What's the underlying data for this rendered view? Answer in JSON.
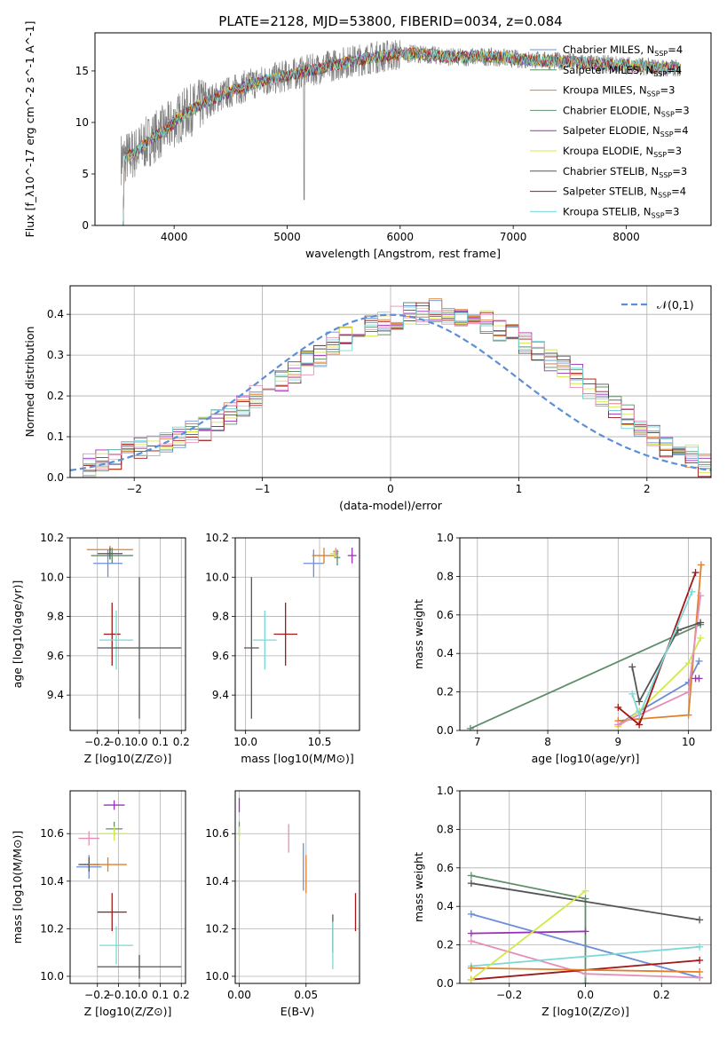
{
  "figure_title": "PLATE=2128, MJD=53800, FIBERID=0034, z=0.084",
  "colors": {
    "chabrier_miles": "#6a8fd8",
    "salpeter_miles": "#5f8f6a",
    "kroupa_miles": "#e07f2a",
    "chabrier_elodie": "#5f8f6a",
    "salpeter_elodie": "#9b30b8",
    "kroupa_elodie": "#d4e84a",
    "chabrier_stelib": "#555555",
    "salpeter_stelib": "#a01818",
    "kroupa_stelib": "#7ad8d8",
    "pink": "#e58fb8",
    "normal_curve": "#5b8fd6",
    "grid": "#b0b0b0",
    "spectrum_data": "#808080"
  },
  "chart_data": [
    {
      "id": "spectrum",
      "type": "line",
      "xlabel": "wavelength [Angstrom, rest frame]",
      "ylabel": "Flux [f_λ10^-17 erg cm^-2 s^-1 A^-1]",
      "xlim": [
        3300,
        8750
      ],
      "ylim": [
        0,
        18.7
      ],
      "xticks": [
        4000,
        5000,
        6000,
        7000,
        8000
      ],
      "yticks": [
        0,
        5,
        10,
        15
      ],
      "grid": false,
      "legend_position": "top-right",
      "legend": [
        "Chabrier MILES, N_SSP=4",
        "Salpeter MILES, N_SSP=4",
        "Kroupa MILES, N_SSP=3",
        "Chabrier ELODIE, N_SSP=3",
        "Salpeter ELODIE, N_SSP=4",
        "Kroupa ELODIE, N_SSP=3",
        "Chabrier STELIB, N_SSP=3",
        "Salpeter STELIB, N_SSP=4",
        "Kroupa STELIB, N_SSP=3"
      ],
      "legend_colors": [
        "#6a8fd8",
        "#5f8f6a",
        "#e07f2a",
        "#5f8f6a",
        "#9b30b8",
        "#d4e84a",
        "#555555",
        "#a01818",
        "#7ad8d8"
      ],
      "continuum": {
        "x": [
          3550,
          3650,
          3750,
          3850,
          3950,
          4050,
          4150,
          4250,
          4350,
          4500,
          4700,
          4900,
          5100,
          5300,
          5500,
          5700,
          5900,
          6100,
          6300,
          6500,
          6700,
          6900,
          7100,
          7300,
          7500,
          7700,
          7900,
          8100,
          8300,
          8500
        ],
        "y": [
          6.5,
          7.0,
          8.0,
          8.8,
          9.5,
          10.5,
          11.2,
          11.8,
          12.3,
          13.0,
          13.8,
          14.3,
          14.8,
          15.3,
          15.8,
          16.2,
          16.5,
          16.7,
          16.5,
          16.3,
          16.4,
          16.3,
          16.1,
          16.0,
          15.9,
          15.7,
          15.6,
          15.5,
          15.3,
          15.2
        ]
      }
    },
    {
      "id": "residuals",
      "type": "bar",
      "xlabel": "(data-model)/error",
      "ylabel": "Normed distribution",
      "xlim": [
        -2.5,
        2.5
      ],
      "ylim": [
        0,
        0.47
      ],
      "xticks": [
        -2,
        -1,
        0,
        1,
        2
      ],
      "yticks": [
        0.0,
        0.1,
        0.2,
        0.3,
        0.4
      ],
      "grid": true,
      "legend": [
        "𝒩(0,1)"
      ],
      "legend_position": "top-right",
      "bin_width": 0.1,
      "bin_start": -2.5,
      "values": [
        0.02,
        0.03,
        0.04,
        0.05,
        0.06,
        0.07,
        0.08,
        0.09,
        0.1,
        0.11,
        0.12,
        0.14,
        0.16,
        0.18,
        0.2,
        0.22,
        0.24,
        0.26,
        0.28,
        0.3,
        0.33,
        0.34,
        0.36,
        0.37,
        0.38,
        0.39,
        0.4,
        0.4,
        0.41,
        0.4,
        0.4,
        0.39,
        0.38,
        0.36,
        0.35,
        0.33,
        0.31,
        0.29,
        0.27,
        0.25,
        0.22,
        0.2,
        0.17,
        0.15,
        0.12,
        0.1,
        0.08,
        0.06,
        0.05,
        0.03
      ]
    },
    {
      "id": "age_vs_Z",
      "type": "scatter",
      "xlabel": "Z [log10(Z/Z⊙)]",
      "ylabel": "age [log10(age/yr)]",
      "xlim": [
        -0.33,
        0.22
      ],
      "ylim": [
        9.22,
        10.2
      ],
      "xticks": [
        -0.2,
        -0.1,
        0.0,
        0.1,
        0.2
      ],
      "yticks": [
        9.4,
        9.6,
        9.8,
        10.0,
        10.2
      ],
      "grid": true,
      "points": [
        {
          "x": -0.15,
          "y": 10.07,
          "xerr": 0.07,
          "yerr": 0.07,
          "color": "#6a8fd8"
        },
        {
          "x": -0.14,
          "y": 10.14,
          "xerr": 0.11,
          "yerr": 0.02,
          "color": "#e07f2a"
        },
        {
          "x": -0.13,
          "y": 10.11,
          "xerr": 0.1,
          "yerr": 0.04,
          "color": "#5f8f6a"
        },
        {
          "x": -0.14,
          "y": 10.12,
          "xerr": 0.06,
          "yerr": 0.03,
          "color": "#555555"
        },
        {
          "x": -0.13,
          "y": 9.71,
          "xerr": 0.04,
          "yerr": 0.16,
          "color": "#a01818"
        },
        {
          "x": -0.11,
          "y": 9.68,
          "xerr": 0.08,
          "yerr": 0.15,
          "color": "#7ad8d8"
        },
        {
          "x": 0.0,
          "y": 9.64,
          "xerr": 0.2,
          "yerr": 0.36,
          "color": "#555555"
        }
      ]
    },
    {
      "id": "age_vs_mass",
      "type": "scatter",
      "xlabel": "mass [log10(M/M⊙)]",
      "ylabel": "",
      "xlim": [
        9.93,
        10.77
      ],
      "ylim": [
        9.22,
        10.2
      ],
      "xticks": [
        10.0,
        10.5
      ],
      "yticks": [
        9.4,
        9.6,
        9.8,
        10.0,
        10.2
      ],
      "grid": true,
      "points": [
        {
          "x": 10.04,
          "y": 9.64,
          "xerr": 0.05,
          "yerr": 0.36,
          "color": "#555555"
        },
        {
          "x": 10.13,
          "y": 9.68,
          "xerr": 0.08,
          "yerr": 0.15,
          "color": "#7ad8d8"
        },
        {
          "x": 10.27,
          "y": 9.71,
          "xerr": 0.08,
          "yerr": 0.16,
          "color": "#a01818"
        },
        {
          "x": 10.46,
          "y": 10.07,
          "xerr": 0.07,
          "yerr": 0.07,
          "color": "#6a8fd8"
        },
        {
          "x": 10.53,
          "y": 10.11,
          "xerr": 0.08,
          "yerr": 0.04,
          "color": "#e07f2a"
        },
        {
          "x": 10.6,
          "y": 10.12,
          "xerr": 0.03,
          "yerr": 0.02,
          "color": "#d4e84a"
        },
        {
          "x": 10.61,
          "y": 10.13,
          "xerr": 0.02,
          "yerr": 0.02,
          "color": "#e58fb8"
        },
        {
          "x": 10.62,
          "y": 10.1,
          "xerr": 0.02,
          "yerr": 0.04,
          "color": "#5f8f6a"
        },
        {
          "x": 10.72,
          "y": 10.11,
          "xerr": 0.03,
          "yerr": 0.04,
          "color": "#9b30b8"
        }
      ]
    },
    {
      "id": "weight_vs_age",
      "type": "line",
      "xlabel": "age [log10(age/yr)]",
      "ylabel": "mass weight",
      "xlim": [
        6.75,
        10.32
      ],
      "ylim": [
        0,
        1.0
      ],
      "xticks": [
        7,
        8,
        9,
        10
      ],
      "yticks": [
        0.0,
        0.2,
        0.4,
        0.6,
        0.8,
        1.0
      ],
      "grid": true,
      "series": [
        {
          "color": "#5f8f6a",
          "x": [
            6.9,
            10.17
          ],
          "y": [
            0.01,
            0.55
          ]
        },
        {
          "color": "#6a8fd8",
          "x": [
            9.0,
            9.3,
            10.0,
            10.15
          ],
          "y": [
            0.03,
            0.1,
            0.25,
            0.36
          ]
        },
        {
          "color": "#e07f2a",
          "x": [
            9.0,
            9.3,
            10.0,
            10.18
          ],
          "y": [
            0.05,
            0.06,
            0.08,
            0.86
          ]
        },
        {
          "color": "#d4e84a",
          "x": [
            9.0,
            9.3,
            10.0,
            10.17
          ],
          "y": [
            0.02,
            0.1,
            0.35,
            0.48
          ]
        },
        {
          "color": "#9b30b8",
          "x": [
            10.1,
            10.15
          ],
          "y": [
            0.27,
            0.27
          ]
        },
        {
          "color": "#e58fb8",
          "x": [
            9.0,
            10.0,
            10.17
          ],
          "y": [
            0.03,
            0.2,
            0.7
          ]
        },
        {
          "color": "#555555",
          "x": [
            9.2,
            9.3,
            9.85,
            10.17
          ],
          "y": [
            0.33,
            0.15,
            0.52,
            0.56
          ]
        },
        {
          "color": "#a01818",
          "x": [
            9.0,
            9.3,
            10.1
          ],
          "y": [
            0.12,
            0.03,
            0.82
          ]
        },
        {
          "color": "#7ad8d8",
          "x": [
            9.2,
            9.3,
            10.05
          ],
          "y": [
            0.19,
            0.08,
            0.72
          ]
        }
      ]
    },
    {
      "id": "mass_vs_Z",
      "type": "scatter",
      "xlabel": "Z [log10(Z/Z⊙)]",
      "ylabel": "mass [log10(M/M⊙)]",
      "xlim": [
        -0.33,
        0.22
      ],
      "ylim": [
        9.97,
        10.78
      ],
      "xticks": [
        -0.2,
        -0.1,
        0.0,
        0.1,
        0.2
      ],
      "yticks": [
        10.0,
        10.2,
        10.4,
        10.6
      ],
      "grid": true,
      "points": [
        {
          "x": -0.12,
          "y": 10.72,
          "xerr": 0.05,
          "yerr": 0.02,
          "color": "#9b30b8"
        },
        {
          "x": -0.12,
          "y": 10.62,
          "xerr": 0.04,
          "yerr": 0.03,
          "color": "#5f8f6a"
        },
        {
          "x": -0.12,
          "y": 10.6,
          "xerr": 0.07,
          "yerr": 0.03,
          "color": "#d4e84a"
        },
        {
          "x": -0.24,
          "y": 10.58,
          "xerr": 0.05,
          "yerr": 0.03,
          "color": "#e58fb8"
        },
        {
          "x": -0.24,
          "y": 10.46,
          "xerr": 0.06,
          "yerr": 0.05,
          "color": "#6a8fd8"
        },
        {
          "x": -0.24,
          "y": 10.47,
          "xerr": 0.05,
          "yerr": 0.03,
          "color": "#555555"
        },
        {
          "x": -0.15,
          "y": 10.47,
          "xerr": 0.09,
          "yerr": 0.03,
          "color": "#e07f2a"
        },
        {
          "x": -0.13,
          "y": 10.27,
          "xerr": 0.07,
          "yerr": 0.08,
          "color": "#a01818"
        },
        {
          "x": -0.11,
          "y": 10.13,
          "xerr": 0.08,
          "yerr": 0.08,
          "color": "#7ad8d8"
        },
        {
          "x": 0.0,
          "y": 10.04,
          "xerr": 0.2,
          "yerr": 0.05,
          "color": "#555555"
        }
      ]
    },
    {
      "id": "mass_vs_ebv",
      "type": "scatter",
      "xlabel": "E(B-V)",
      "ylabel": "",
      "xlim": [
        -0.003,
        0.09
      ],
      "ylim": [
        9.97,
        10.78
      ],
      "xticks": [
        0.0,
        0.05
      ],
      "yticks": [
        10.0,
        10.2,
        10.4,
        10.6
      ],
      "grid": true,
      "points": [
        {
          "x": 0.0,
          "y": 10.72,
          "xerr": 0,
          "yerr": 0.03,
          "color": "#9b30b8"
        },
        {
          "x": 0.0,
          "y": 10.62,
          "xerr": 0,
          "yerr": 0.03,
          "color": "#5f8f6a"
        },
        {
          "x": 0.0,
          "y": 10.6,
          "xerr": 0,
          "yerr": 0.03,
          "color": "#d4e84a"
        },
        {
          "x": 0.037,
          "y": 10.58,
          "xerr": 0,
          "yerr": 0.06,
          "color": "#e58fb8"
        },
        {
          "x": 0.048,
          "y": 10.46,
          "xerr": 0,
          "yerr": 0.1,
          "color": "#6a8fd8"
        },
        {
          "x": 0.05,
          "y": 10.43,
          "xerr": 0,
          "yerr": 0.08,
          "color": "#e07f2a"
        },
        {
          "x": 0.07,
          "y": 10.18,
          "xerr": 0,
          "yerr": 0.08,
          "color": "#555555"
        },
        {
          "x": 0.07,
          "y": 10.13,
          "xerr": 0,
          "yerr": 0.1,
          "color": "#7ad8d8"
        },
        {
          "x": 0.087,
          "y": 10.27,
          "xerr": 0,
          "yerr": 0.08,
          "color": "#a01818"
        }
      ]
    },
    {
      "id": "weight_vs_Z",
      "type": "line",
      "xlabel": "Z [log10(Z/Z⊙)]",
      "ylabel": "mass weight",
      "xlim": [
        -0.33,
        0.33
      ],
      "ylim": [
        0,
        1.0
      ],
      "xticks": [
        -0.2,
        0.0,
        0.2
      ],
      "yticks": [
        0.0,
        0.2,
        0.4,
        0.6,
        0.8,
        1.0
      ],
      "grid": true,
      "series": [
        {
          "color": "#5f8f6a",
          "x": [
            -0.3,
            0.0,
            0.0
          ],
          "y": [
            0.56,
            0.44,
            0.0
          ]
        },
        {
          "color": "#555555",
          "x": [
            -0.3,
            0.3
          ],
          "y": [
            0.52,
            0.33
          ]
        },
        {
          "color": "#6a8fd8",
          "x": [
            -0.3,
            0.3
          ],
          "y": [
            0.36,
            0.03
          ]
        },
        {
          "color": "#9b30b8",
          "x": [
            -0.3,
            0.0
          ],
          "y": [
            0.26,
            0.27
          ]
        },
        {
          "color": "#e58fb8",
          "x": [
            -0.3,
            0.0,
            0.3
          ],
          "y": [
            0.22,
            0.05,
            0.03
          ]
        },
        {
          "color": "#7ad8d8",
          "x": [
            -0.3,
            0.3
          ],
          "y": [
            0.09,
            0.19
          ]
        },
        {
          "color": "#a01818",
          "x": [
            -0.3,
            0.3
          ],
          "y": [
            0.02,
            0.12
          ]
        },
        {
          "color": "#e07f2a",
          "x": [
            -0.3,
            0.3
          ],
          "y": [
            0.08,
            0.06
          ]
        },
        {
          "color": "#d4e84a",
          "x": [
            -0.3,
            0.0
          ],
          "y": [
            0.02,
            0.48
          ]
        }
      ]
    }
  ]
}
